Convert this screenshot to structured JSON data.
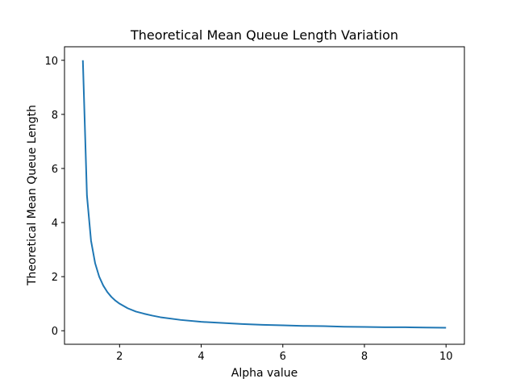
{
  "chart_data": {
    "type": "line",
    "title": "Theoretical Mean Queue Length Variation",
    "xlabel": "Alpha value",
    "ylabel": "Theoretical Mean Queue Length",
    "xlim": [
      0.65,
      10.45
    ],
    "ylim": [
      -0.5,
      10.5
    ],
    "xticks": [
      2,
      4,
      6,
      8,
      10
    ],
    "yticks": [
      0,
      2,
      4,
      6,
      8,
      10
    ],
    "grid": false,
    "series": [
      {
        "color": "#1f77b4",
        "x": [
          1.1,
          1.2,
          1.3,
          1.4,
          1.5,
          1.6,
          1.7,
          1.8,
          1.9,
          2.0,
          2.2,
          2.4,
          2.6,
          2.8,
          3.0,
          3.5,
          4.0,
          4.5,
          5.0,
          5.5,
          6.0,
          6.5,
          7.0,
          7.5,
          8.0,
          8.5,
          9.0,
          9.5,
          10.0
        ],
        "y": [
          10.0,
          5.0,
          3.33,
          2.5,
          2.0,
          1.67,
          1.43,
          1.25,
          1.11,
          1.0,
          0.83,
          0.71,
          0.63,
          0.56,
          0.5,
          0.4,
          0.33,
          0.29,
          0.25,
          0.22,
          0.2,
          0.18,
          0.17,
          0.15,
          0.14,
          0.13,
          0.13,
          0.12,
          0.11
        ]
      }
    ]
  }
}
